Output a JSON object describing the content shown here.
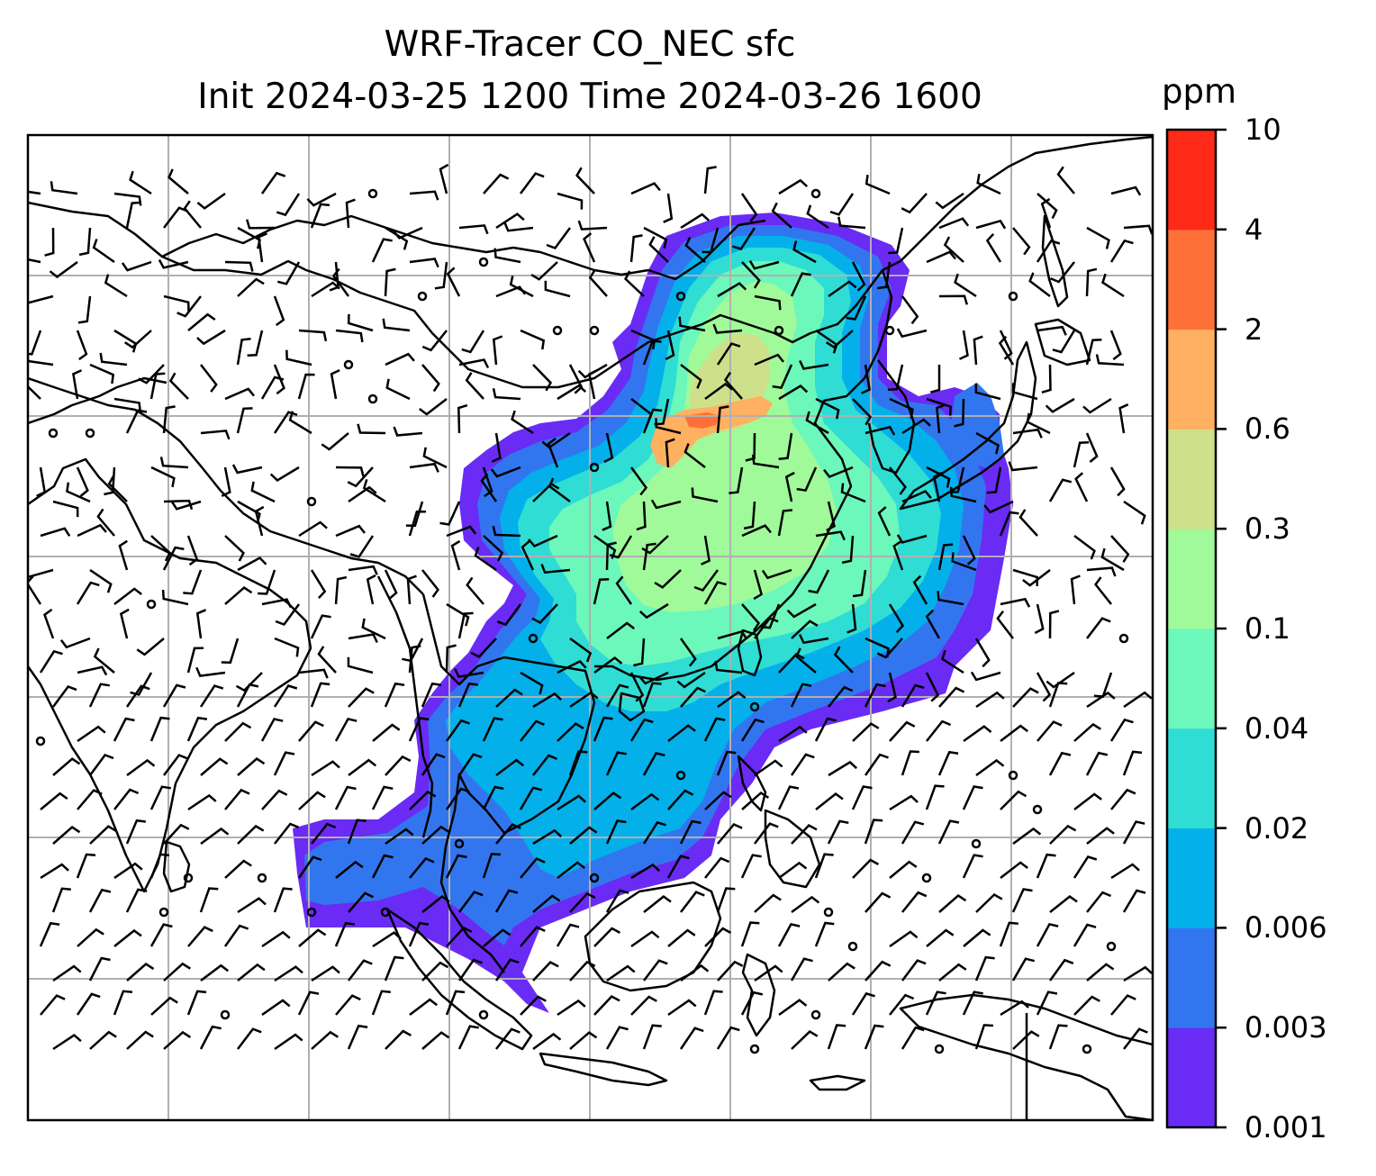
{
  "title": {
    "line1": "WRF-Tracer CO_NEC sfc",
    "line2": "Init 2024-03-25 1200 Time 2024-03-26 1600"
  },
  "colorbar": {
    "label": "ppm",
    "levels": [
      "0.001",
      "0.003",
      "0.006",
      "0.02",
      "0.04",
      "0.1",
      "0.3",
      "0.6",
      "2",
      "4",
      "10"
    ],
    "colors": [
      "#6a2bf5",
      "#3276ef",
      "#04b0ea",
      "#2fddd4",
      "#6cf7bb",
      "#a0fa9a",
      "#cfe08a",
      "#ffb061",
      "#ff7038",
      "#ff2a17"
    ]
  },
  "map": {
    "grid": true,
    "coastline_color": "#000000",
    "grid_color": "#b0b0b0",
    "land_fill": "#ffffff",
    "overlay": "wind barbs"
  }
}
